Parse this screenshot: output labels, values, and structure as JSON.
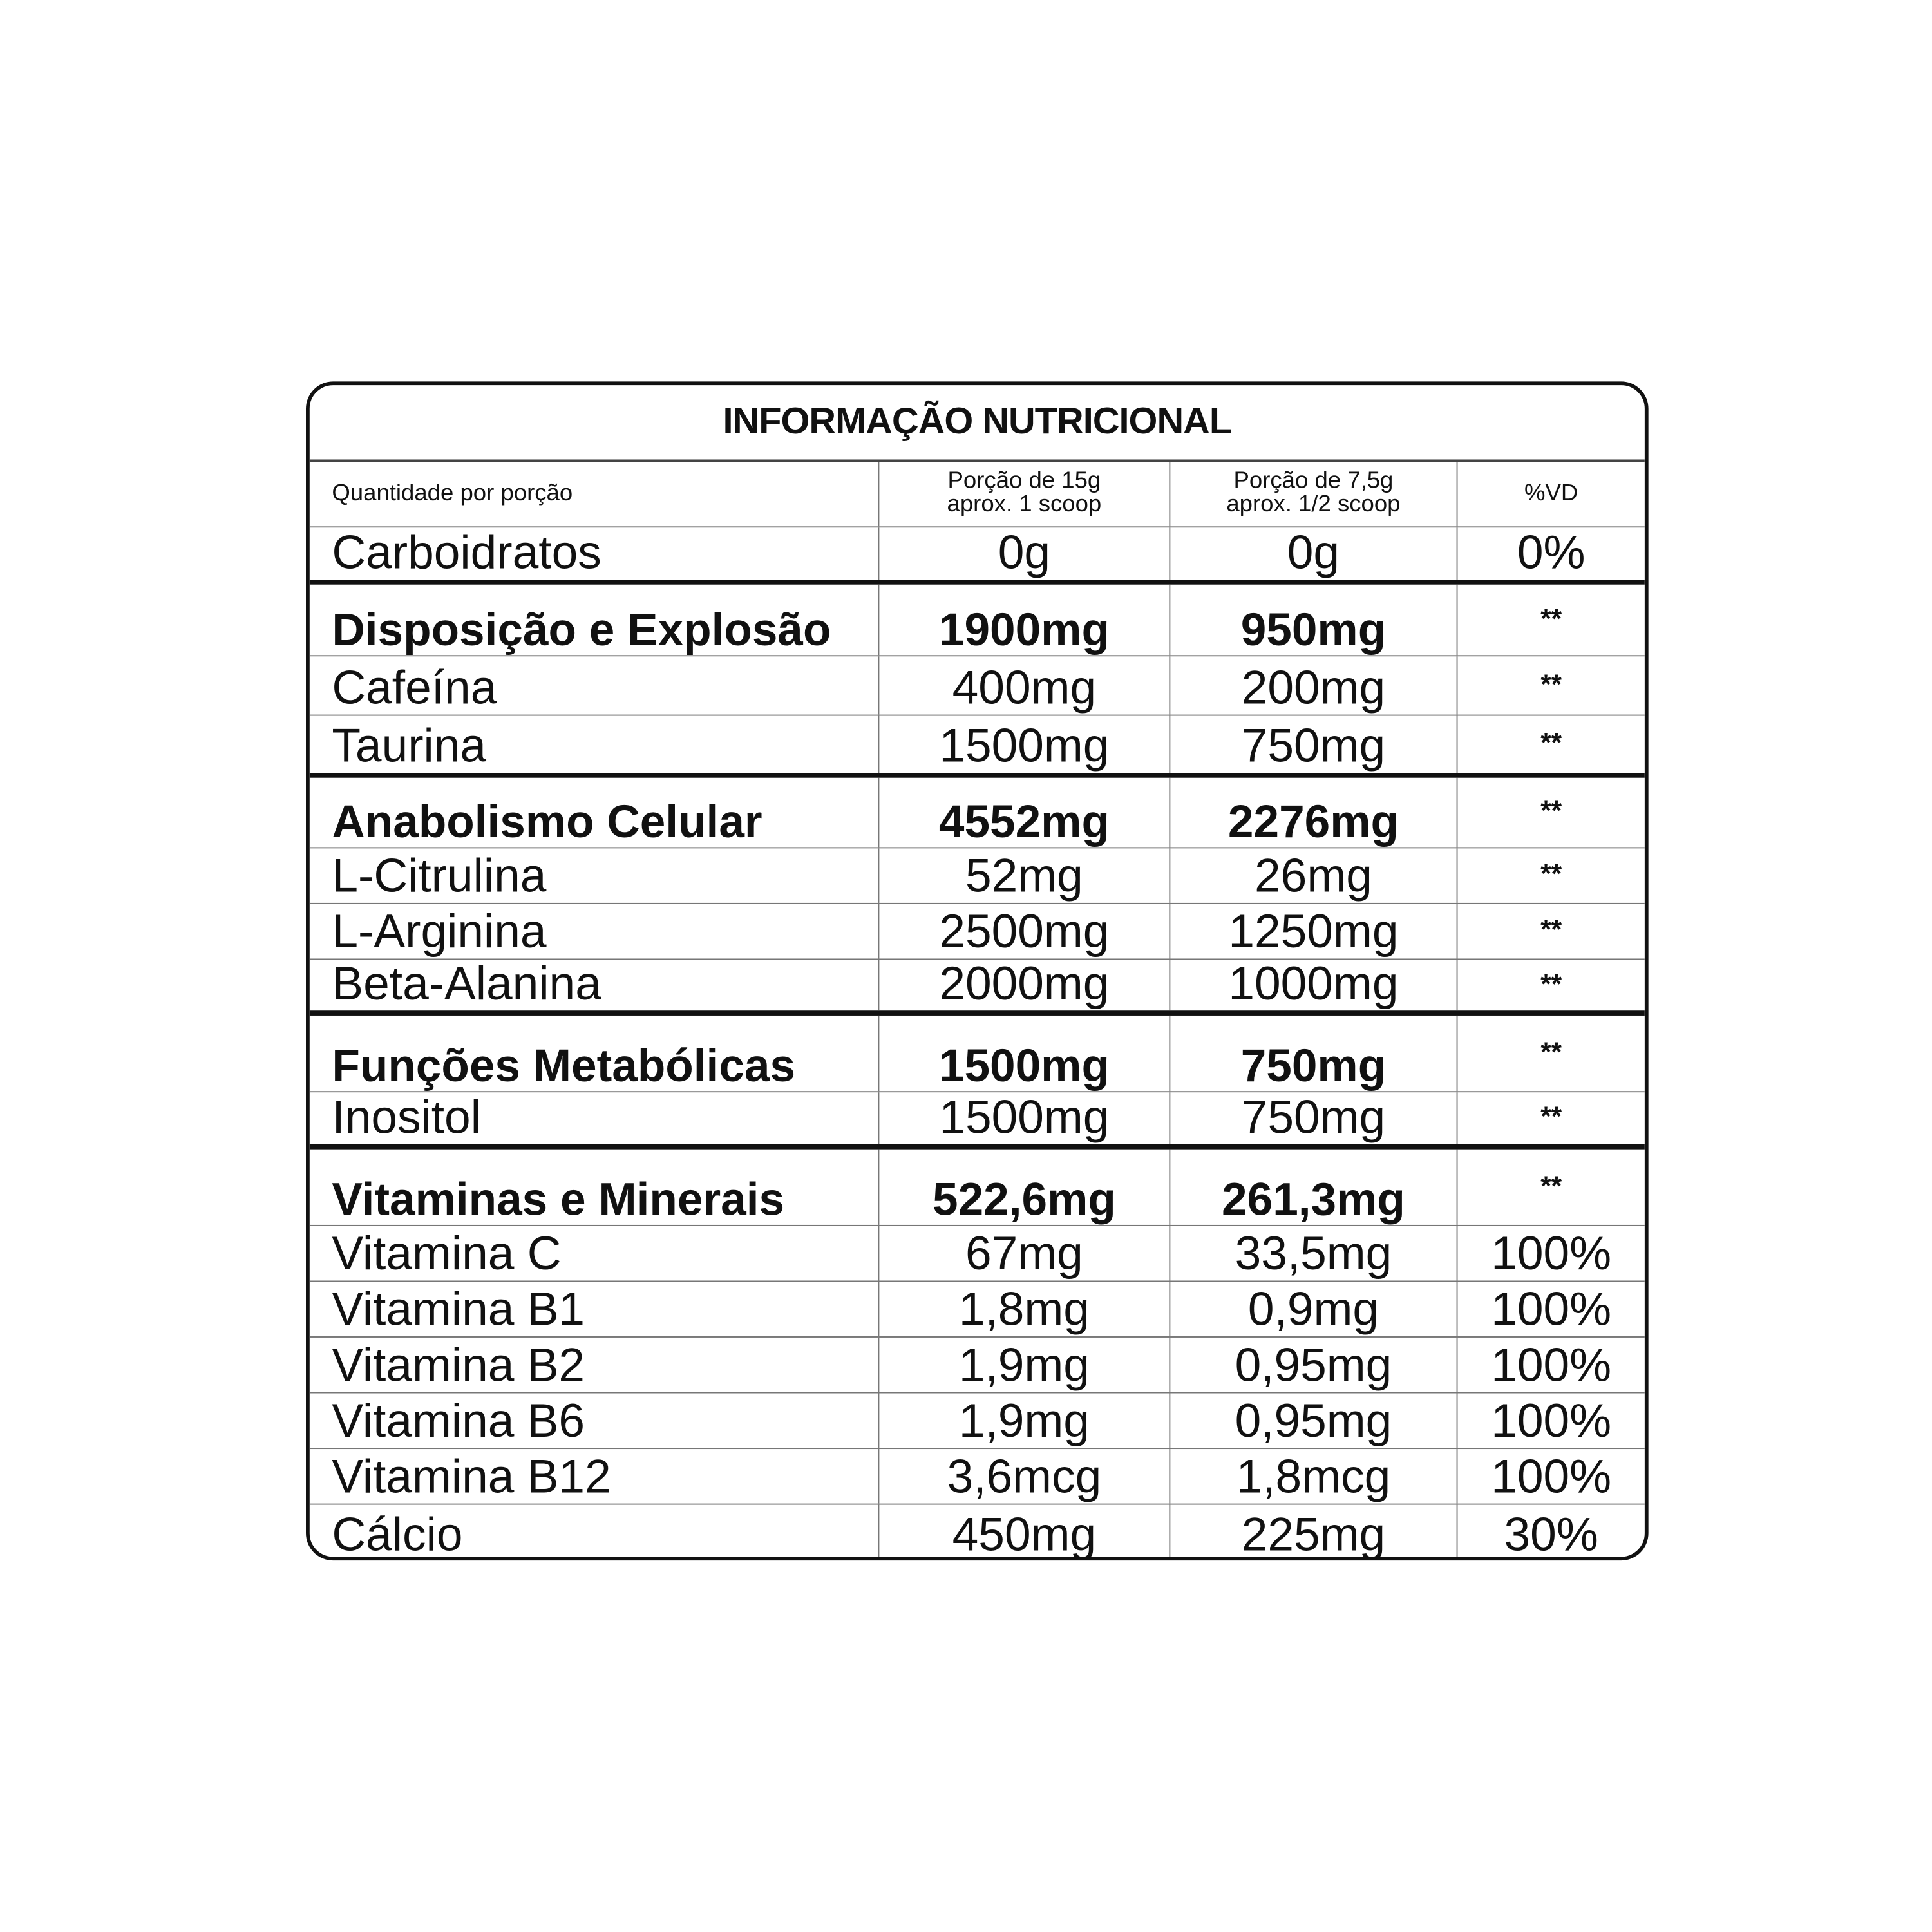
{
  "title": "INFORMAÇÃO NUTRICIONAL",
  "header": {
    "label": "Quantidade por porção",
    "col1_line1": "Porção de 15g",
    "col1_line2": "aprox. 1 scoop",
    "col2_line1": "Porção de 7,5g",
    "col2_line2": "aprox. 1/2 scoop",
    "col3": "%VD"
  },
  "rows": [
    {
      "name": "Carboidratos",
      "v1": "0g",
      "v2": "0g",
      "vd": "0%",
      "bold": false
    },
    {
      "name": "Disposição e Explosão",
      "v1": "1900mg",
      "v2": "950mg",
      "vd": "**",
      "bold": true
    },
    {
      "name": "Cafeína",
      "v1": "400mg",
      "v2": "200mg",
      "vd": "**",
      "bold": false
    },
    {
      "name": "Taurina",
      "v1": "1500mg",
      "v2": "750mg",
      "vd": "**",
      "bold": false
    },
    {
      "name": "Anabolismo Celular",
      "v1": "4552mg",
      "v2": "2276mg",
      "vd": "**",
      "bold": true
    },
    {
      "name": "L-Citrulina",
      "v1": "52mg",
      "v2": "26mg",
      "vd": "**",
      "bold": false
    },
    {
      "name": "L-Arginina",
      "v1": "2500mg",
      "v2": "1250mg",
      "vd": "**",
      "bold": false
    },
    {
      "name": "Beta-Alanina",
      "v1": "2000mg",
      "v2": "1000mg",
      "vd": "**",
      "bold": false
    },
    {
      "name": "Funções Metabólicas",
      "v1": "1500mg",
      "v2": "750mg",
      "vd": "**",
      "bold": true
    },
    {
      "name": "Inositol",
      "v1": "1500mg",
      "v2": "750mg",
      "vd": "**",
      "bold": false
    },
    {
      "name": "Vitaminas e Minerais",
      "v1": "522,6mg",
      "v2": "261,3mg",
      "vd": "**",
      "bold": true
    },
    {
      "name": "Vitamina C",
      "v1": "67mg",
      "v2": "33,5mg",
      "vd": "100%",
      "bold": false
    },
    {
      "name": "Vitamina B1",
      "v1": "1,8mg",
      "v2": "0,9mg",
      "vd": "100%",
      "bold": false
    },
    {
      "name": "Vitamina B2",
      "v1": "1,9mg",
      "v2": "0,95mg",
      "vd": "100%",
      "bold": false
    },
    {
      "name": "Vitamina B6",
      "v1": "1,9mg",
      "v2": "0,95mg",
      "vd": "100%",
      "bold": false
    },
    {
      "name": "Vitamina B12",
      "v1": "3,6mcg",
      "v2": "1,8mcg",
      "vd": "100%",
      "bold": false
    },
    {
      "name": "Cálcio",
      "v1": "450mg",
      "v2": "225mg",
      "vd": "30%",
      "bold": false
    }
  ]
}
